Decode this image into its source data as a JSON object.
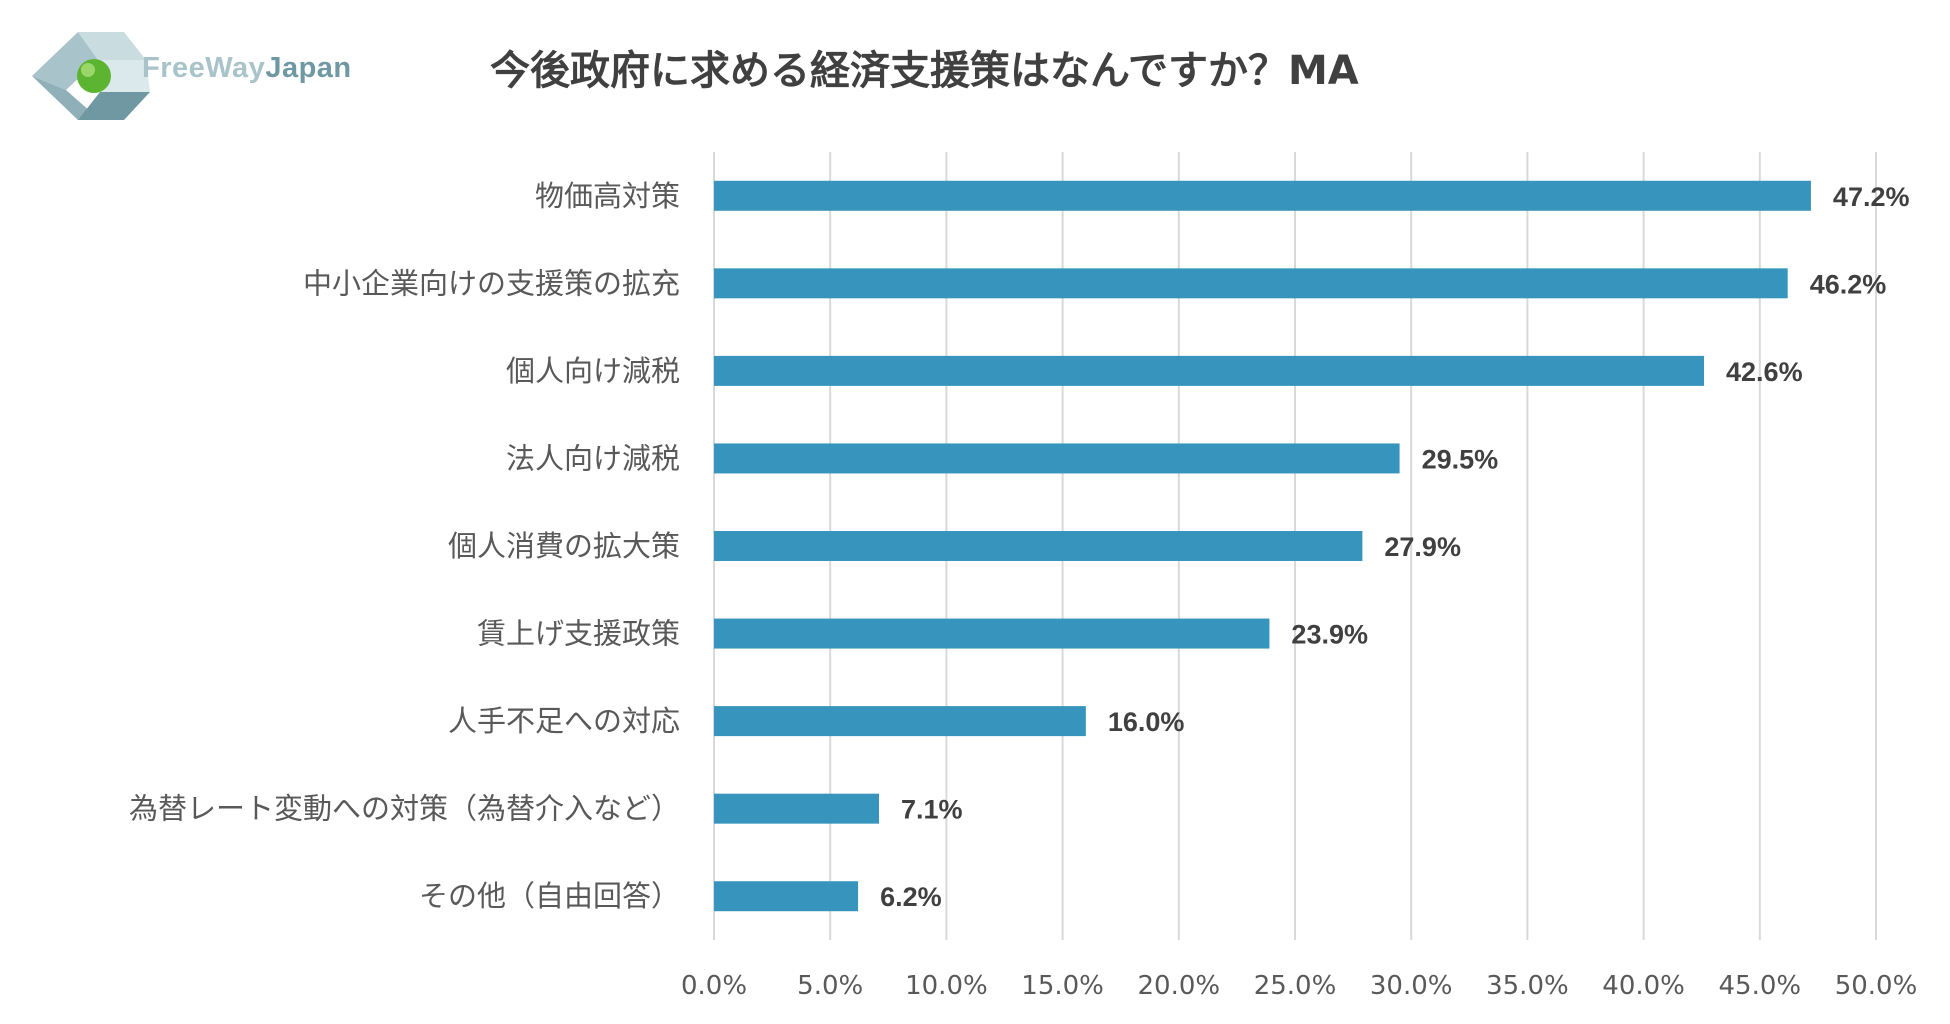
{
  "logo": {
    "word1": "FreeWay",
    "word2": "Japan",
    "colors": {
      "word1": "#a9c3ca",
      "word2": "#6f98a3",
      "accent": "#5cb531"
    }
  },
  "title": "今後政府に求める経済支援策はなんですか？MA",
  "chart_data": {
    "type": "bar",
    "orientation": "horizontal",
    "categories": [
      "物価高対策",
      "中小企業向けの支援策の拡充",
      "個人向け減税",
      "法人向け減税",
      "個人消費の拡大策",
      "賃上げ支援政策",
      "人手不足への対応",
      "為替レート変動への対策（為替介入など）",
      "その他（自由回答）"
    ],
    "values": [
      47.2,
      46.2,
      42.6,
      29.5,
      27.9,
      23.9,
      16.0,
      7.1,
      6.2
    ],
    "value_labels": [
      "47.2%",
      "46.2%",
      "42.6%",
      "29.5%",
      "27.9%",
      "23.9%",
      "16.0%",
      "7.1%",
      "6.2%"
    ],
    "xlim": [
      0,
      50
    ],
    "xticks": [
      "0.0%",
      "5.0%",
      "10.0%",
      "15.0%",
      "20.0%",
      "25.0%",
      "30.0%",
      "35.0%",
      "40.0%",
      "45.0%",
      "50.0%"
    ],
    "grid": "vertical",
    "bar_color": "#3795bd"
  }
}
